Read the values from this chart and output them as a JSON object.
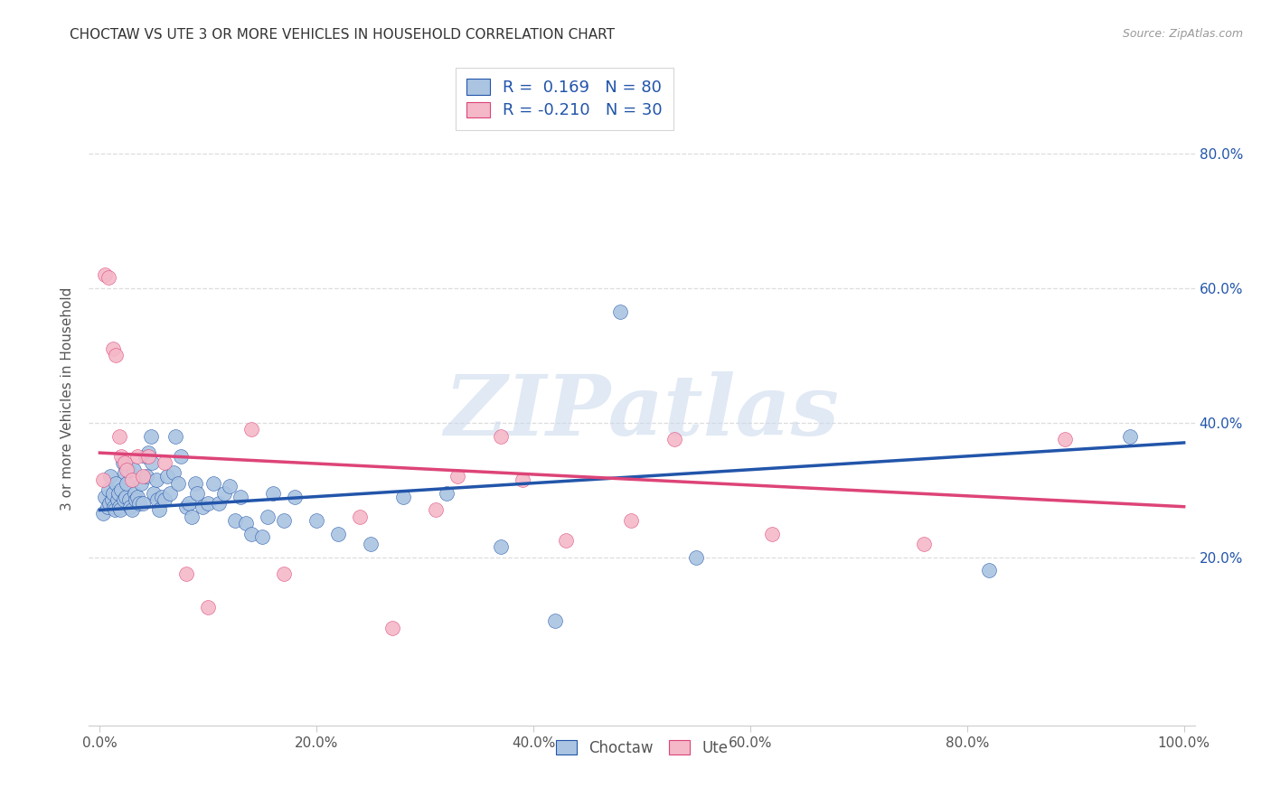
{
  "title": "CHOCTAW VS UTE 3 OR MORE VEHICLES IN HOUSEHOLD CORRELATION CHART",
  "source": "Source: ZipAtlas.com",
  "ylabel": "3 or more Vehicles in Household",
  "ytick_labels": [
    "20.0%",
    "40.0%",
    "60.0%",
    "80.0%"
  ],
  "ytick_values": [
    0.2,
    0.4,
    0.6,
    0.8
  ],
  "xtick_labels": [
    "0.0%",
    "20.0%",
    "40.0%",
    "60.0%",
    "80.0%",
    "100.0%"
  ],
  "xtick_values": [
    0.0,
    0.2,
    0.4,
    0.6,
    0.8,
    1.0
  ],
  "xlim": [
    -0.01,
    1.01
  ],
  "ylim": [
    -0.05,
    0.92
  ],
  "choctaw_color": "#aac4e2",
  "ute_color": "#f4b8c8",
  "choctaw_line_color": "#2255aa",
  "ute_line_color": "#dd4477",
  "watermark_text": "ZIPatlas",
  "watermark_color": "#c8d8ec",
  "choctaw_line_start": 0.27,
  "choctaw_line_end": 0.37,
  "ute_line_start": 0.355,
  "ute_line_end": 0.275,
  "choctaw_x": [
    0.003,
    0.005,
    0.007,
    0.008,
    0.009,
    0.01,
    0.011,
    0.012,
    0.013,
    0.014,
    0.015,
    0.016,
    0.017,
    0.018,
    0.019,
    0.02,
    0.021,
    0.022,
    0.023,
    0.024,
    0.025,
    0.026,
    0.027,
    0.028,
    0.03,
    0.031,
    0.032,
    0.033,
    0.035,
    0.036,
    0.038,
    0.04,
    0.042,
    0.043,
    0.045,
    0.047,
    0.048,
    0.05,
    0.052,
    0.053,
    0.055,
    0.057,
    0.06,
    0.062,
    0.065,
    0.068,
    0.07,
    0.072,
    0.075,
    0.08,
    0.082,
    0.085,
    0.088,
    0.09,
    0.095,
    0.1,
    0.105,
    0.11,
    0.115,
    0.12,
    0.125,
    0.13,
    0.135,
    0.14,
    0.15,
    0.155,
    0.16,
    0.17,
    0.18,
    0.2,
    0.22,
    0.25,
    0.28,
    0.32,
    0.37,
    0.42,
    0.48,
    0.55,
    0.82,
    0.95
  ],
  "choctaw_y": [
    0.265,
    0.29,
    0.275,
    0.3,
    0.28,
    0.32,
    0.285,
    0.295,
    0.275,
    0.27,
    0.31,
    0.285,
    0.295,
    0.275,
    0.27,
    0.3,
    0.34,
    0.285,
    0.325,
    0.29,
    0.31,
    0.33,
    0.285,
    0.275,
    0.27,
    0.33,
    0.295,
    0.285,
    0.29,
    0.28,
    0.31,
    0.28,
    0.35,
    0.32,
    0.355,
    0.38,
    0.34,
    0.295,
    0.315,
    0.285,
    0.27,
    0.29,
    0.285,
    0.32,
    0.295,
    0.325,
    0.38,
    0.31,
    0.35,
    0.275,
    0.28,
    0.26,
    0.31,
    0.295,
    0.275,
    0.28,
    0.31,
    0.28,
    0.295,
    0.305,
    0.255,
    0.29,
    0.25,
    0.235,
    0.23,
    0.26,
    0.295,
    0.255,
    0.29,
    0.255,
    0.235,
    0.22,
    0.29,
    0.295,
    0.215,
    0.105,
    0.565,
    0.2,
    0.18,
    0.38
  ],
  "ute_x": [
    0.003,
    0.005,
    0.008,
    0.012,
    0.015,
    0.018,
    0.02,
    0.023,
    0.025,
    0.03,
    0.035,
    0.04,
    0.045,
    0.06,
    0.08,
    0.1,
    0.14,
    0.17,
    0.24,
    0.27,
    0.31,
    0.33,
    0.37,
    0.39,
    0.43,
    0.49,
    0.53,
    0.62,
    0.76,
    0.89
  ],
  "ute_y": [
    0.315,
    0.62,
    0.615,
    0.51,
    0.5,
    0.38,
    0.35,
    0.34,
    0.33,
    0.315,
    0.35,
    0.32,
    0.35,
    0.34,
    0.175,
    0.125,
    0.39,
    0.175,
    0.26,
    0.095,
    0.27,
    0.32,
    0.38,
    0.315,
    0.225,
    0.255,
    0.375,
    0.235,
    0.22,
    0.375
  ],
  "background_color": "#ffffff",
  "grid_color": "#dddddd",
  "legend_label_choctaw": "R =  0.169   N = 80",
  "legend_label_ute": "R = -0.210   N = 30",
  "legend_text_color": "#2255aa",
  "bottom_label_choctaw": "Choctaw",
  "bottom_label_ute": "Ute"
}
